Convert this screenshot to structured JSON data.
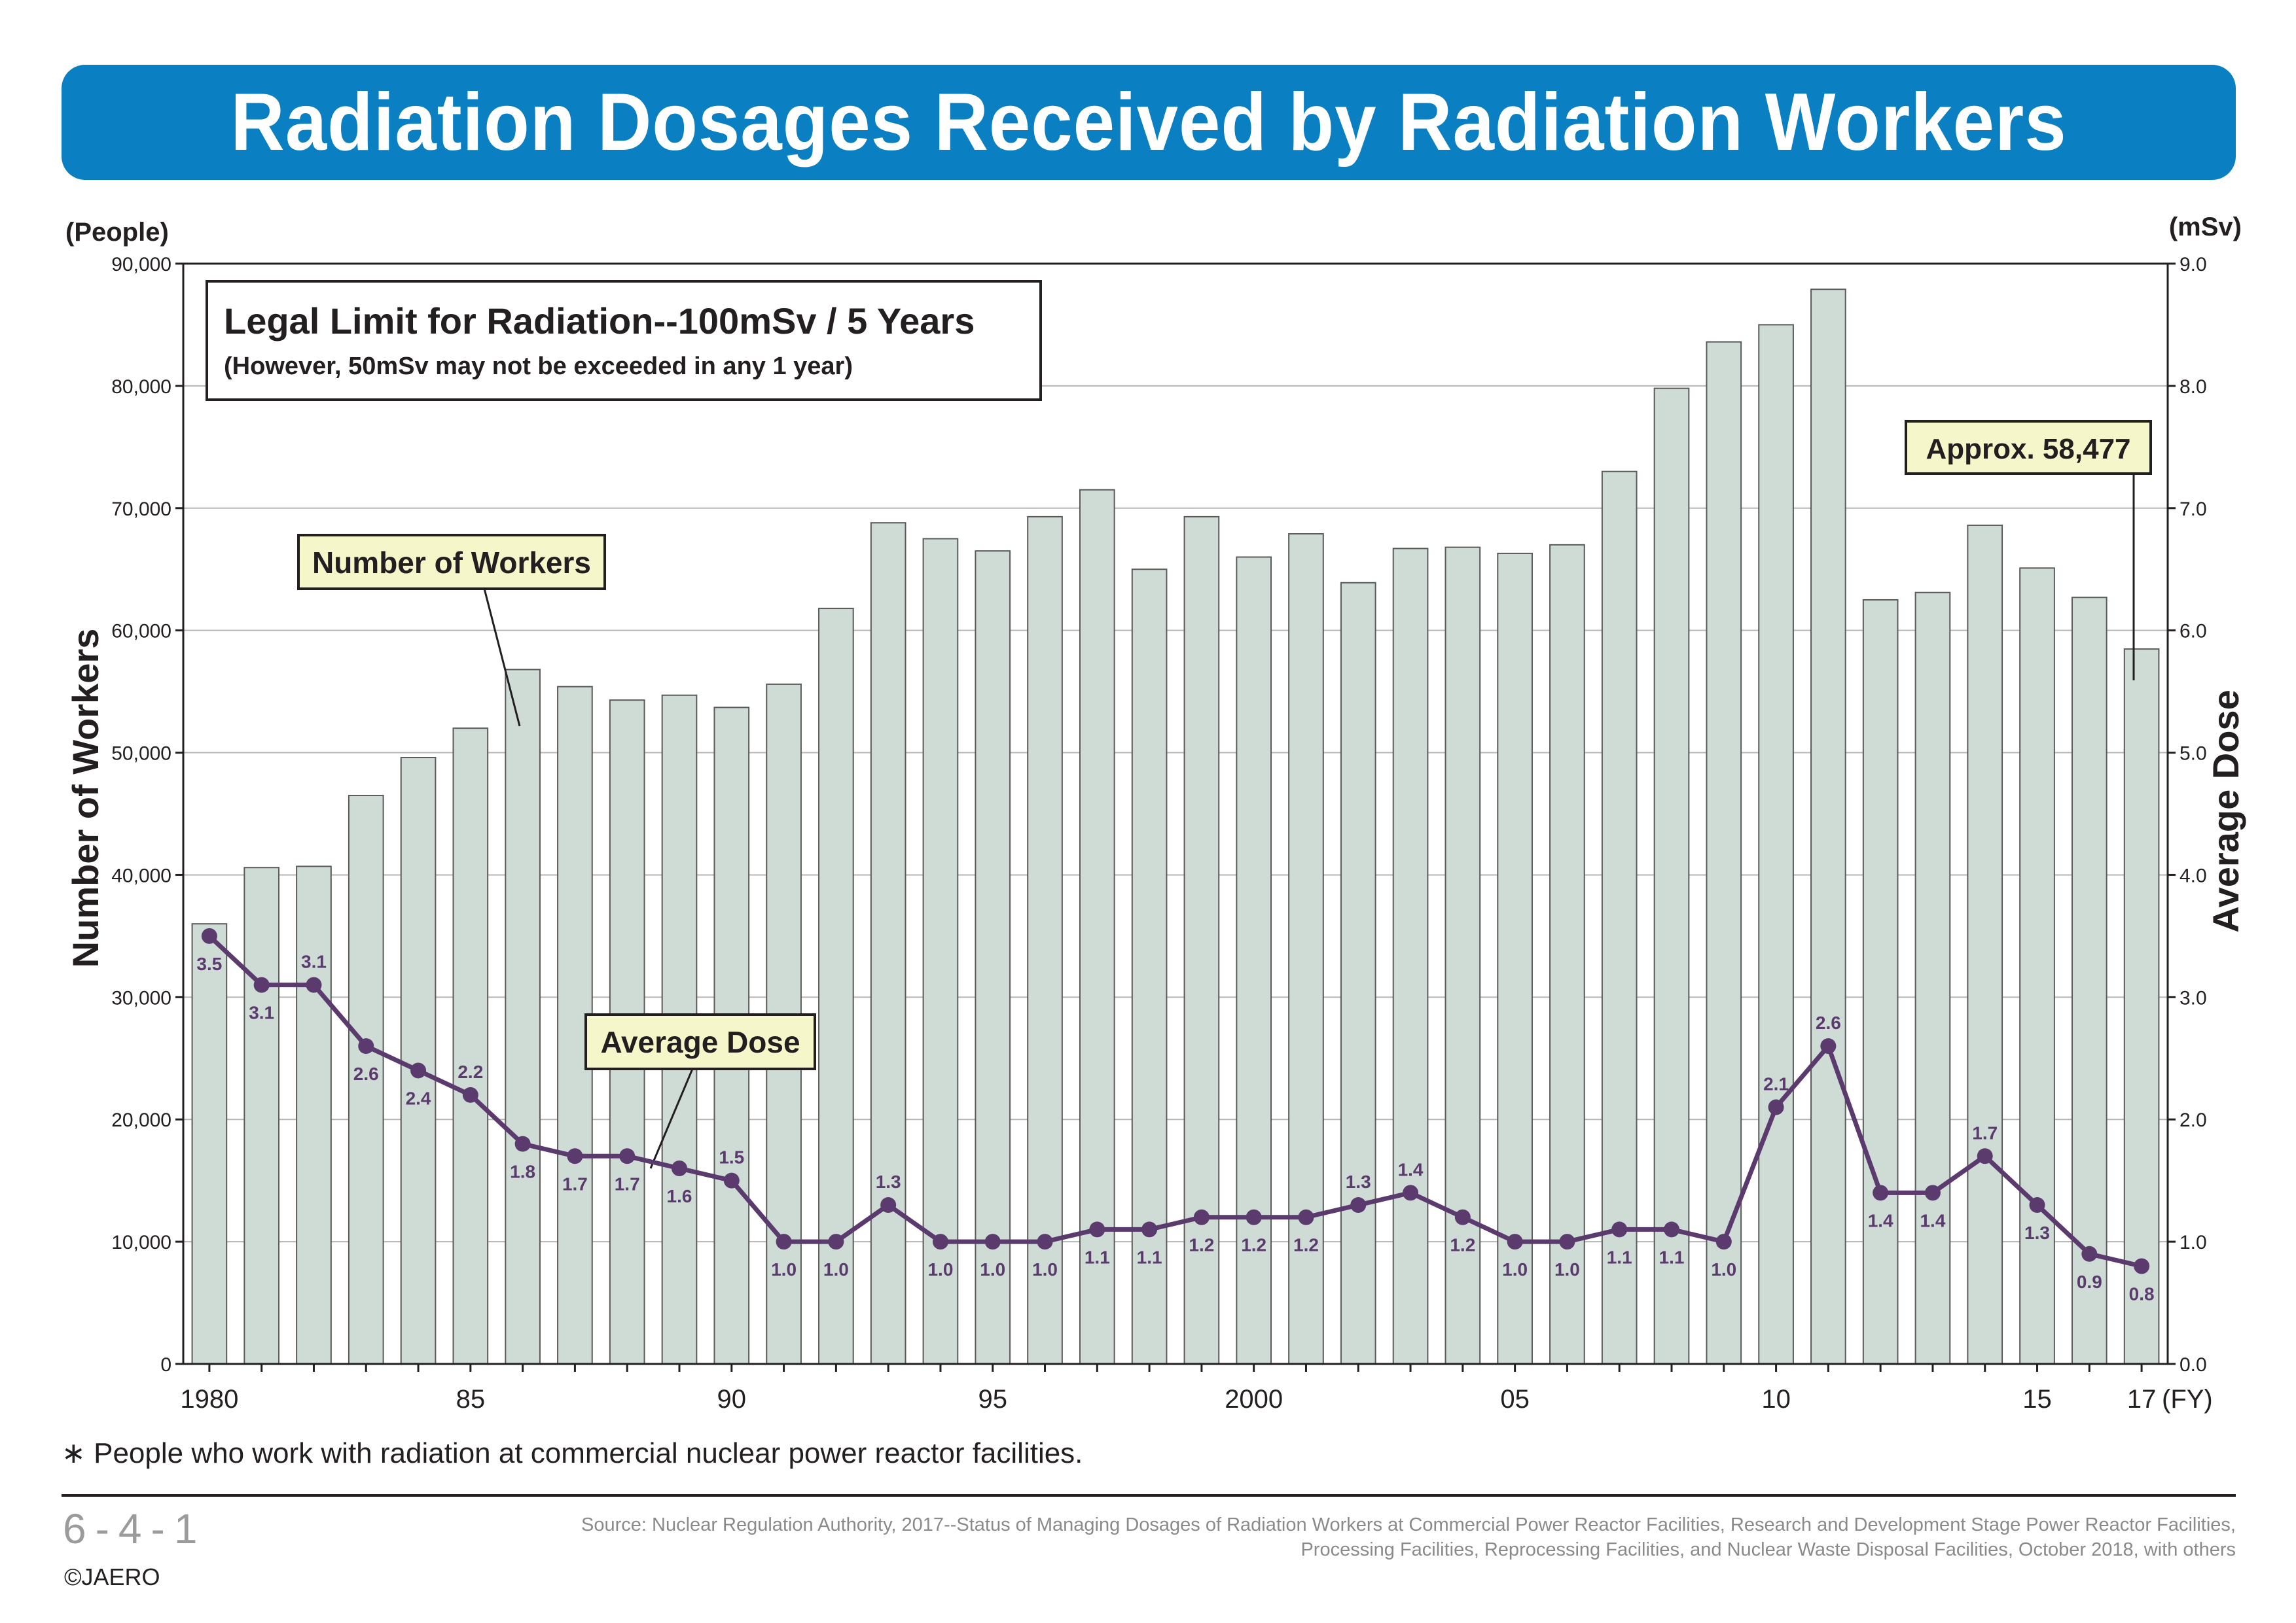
{
  "header": {
    "title": "Radiation Dosages Received by Radiation Workers"
  },
  "colors": {
    "banner": "#0a80c3",
    "bar_fill": "#cfdcd6",
    "bar_stroke": "#5a5a5a",
    "line": "#5b3a6e",
    "callout_fill": "#f5f6c9"
  },
  "chart_data": {
    "type": "bar+line",
    "x_label": "(FY)",
    "x_tick_labels": [
      "1980",
      "85",
      "90",
      "95",
      "2000",
      "05",
      "10",
      "15",
      "17"
    ],
    "years": [
      1980,
      1981,
      1982,
      1983,
      1984,
      1985,
      1986,
      1987,
      1988,
      1989,
      1990,
      1991,
      1992,
      1993,
      1994,
      1995,
      1996,
      1997,
      1998,
      1999,
      2000,
      2001,
      2002,
      2003,
      2004,
      2005,
      2006,
      2007,
      2008,
      2009,
      2010,
      2011,
      2012,
      2013,
      2014,
      2015,
      2016,
      2017
    ],
    "left_axis": {
      "label": "Number of Workers",
      "unit": "(People)",
      "range": [
        0,
        90000
      ],
      "tick_labels": [
        "0",
        "10,000",
        "20,000",
        "30,000",
        "40,000",
        "50,000",
        "60,000",
        "70,000",
        "80,000",
        "90,000"
      ]
    },
    "right_axis": {
      "label": "Average Dose",
      "unit": "(mSv)",
      "range": [
        0,
        9
      ],
      "tick_labels": [
        "0.0",
        "1.0",
        "2.0",
        "3.0",
        "4.0",
        "5.0",
        "6.0",
        "7.0",
        "8.0",
        "9.0"
      ]
    },
    "series": [
      {
        "name": "Number of Workers",
        "type": "bar",
        "axis": "left",
        "values": [
          36000,
          40600,
          40700,
          46500,
          49600,
          52000,
          56800,
          55400,
          54300,
          54700,
          53700,
          55600,
          61800,
          68800,
          67500,
          66500,
          69300,
          71500,
          65000,
          69300,
          66000,
          67900,
          63900,
          66700,
          66800,
          66300,
          67000,
          73000,
          79800,
          83600,
          85000,
          87900,
          62500,
          63100,
          68600,
          65100,
          62700,
          58477
        ]
      },
      {
        "name": "Average Dose",
        "type": "line",
        "axis": "right",
        "values": [
          3.5,
          3.1,
          3.1,
          2.6,
          2.4,
          2.2,
          1.8,
          1.7,
          1.7,
          1.6,
          1.5,
          1.0,
          1.0,
          1.3,
          1.0,
          1.0,
          1.0,
          1.1,
          1.1,
          1.2,
          1.2,
          1.2,
          1.3,
          1.4,
          1.2,
          1.0,
          1.0,
          1.1,
          1.1,
          1.0,
          2.1,
          2.6,
          1.4,
          1.4,
          1.7,
          1.3,
          0.9,
          0.8
        ],
        "labels": [
          "3.5",
          "3.1",
          "3.1",
          "2.6",
          "2.4",
          "2.2",
          "1.8",
          "1.7",
          "1.7",
          "1.6",
          "1.5",
          "1.0",
          "1.0",
          "1.3",
          "1.0",
          "1.0",
          "1.0",
          "1.1",
          "1.1",
          "1.2",
          "1.2",
          "1.2",
          "1.3",
          "1.4",
          "1.2",
          "1.0",
          "1.0",
          "1.1",
          "1.1",
          "1.0",
          "2.1",
          "2.6",
          "1.4",
          "1.4",
          "1.7",
          "1.3",
          "0.9",
          "0.8"
        ]
      }
    ],
    "annotations": {
      "legal_limit": "Legal Limit for Radiation--100mSv / 5 Years",
      "legal_limit_note": "(However, 50mSv may not be exceeded in any 1 year)",
      "workers_callout": "Number of Workers",
      "dose_callout": "Average Dose",
      "latest_callout": "Approx. 58,477"
    },
    "grid": "horizontal"
  },
  "footer": {
    "footnote": "∗ People who work with radiation at commercial nuclear power reactor facilities.",
    "code": "6-4-1",
    "copyright": "©JAERO",
    "source_line1": "Source: Nuclear Regulation Authority, 2017--Status of Managing Dosages of Radiation Workers at Commercial Power Reactor Facilities, Research and Development Stage Power Reactor Facilities,",
    "source_line2": "Processing Facilities, Reprocessing Facilities, and Nuclear Waste Disposal Facilities, October 2018, with others"
  }
}
